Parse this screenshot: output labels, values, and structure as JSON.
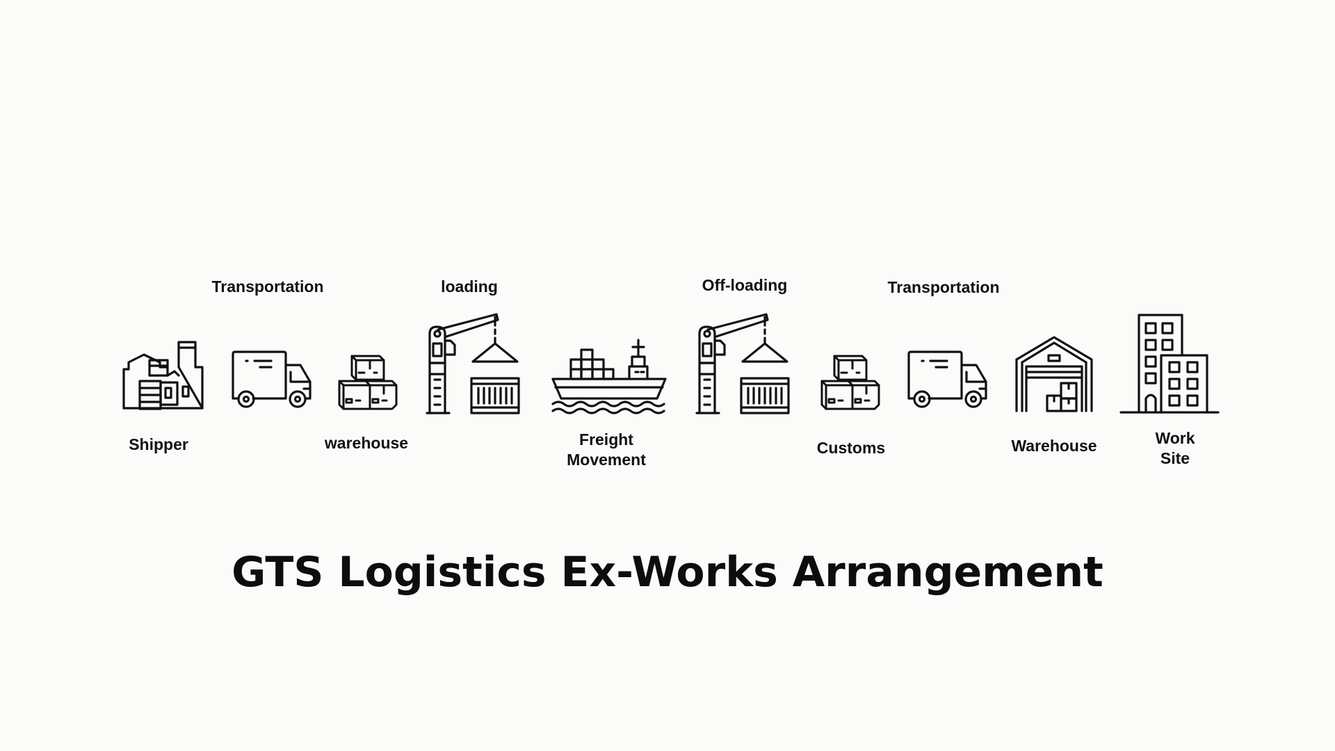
{
  "diagram": {
    "title": "GTS Logistics Ex-Works Arrangement",
    "stages": [
      {
        "id": "shipper",
        "label": "Shipper",
        "icon": "factory-icon"
      },
      {
        "id": "transport-1",
        "label": "Transportation",
        "icon": "delivery-truck-icon"
      },
      {
        "id": "warehouse-1",
        "label": "warehouse",
        "icon": "stacked-boxes-icon"
      },
      {
        "id": "loading",
        "label": "loading",
        "icon": "crane-container-icon"
      },
      {
        "id": "freight",
        "label": "Freight\nMovement",
        "icon": "cargo-ship-icon"
      },
      {
        "id": "offloading",
        "label": "Off-loading",
        "icon": "crane-container-icon"
      },
      {
        "id": "customs",
        "label": "Customs",
        "icon": "stacked-boxes-icon"
      },
      {
        "id": "transport-2",
        "label": "Transportation",
        "icon": "delivery-truck-icon"
      },
      {
        "id": "warehouse-2",
        "label": "Warehouse",
        "icon": "warehouse-building-icon"
      },
      {
        "id": "worksite",
        "label": "Work\nSite",
        "icon": "office-building-icon"
      }
    ]
  }
}
